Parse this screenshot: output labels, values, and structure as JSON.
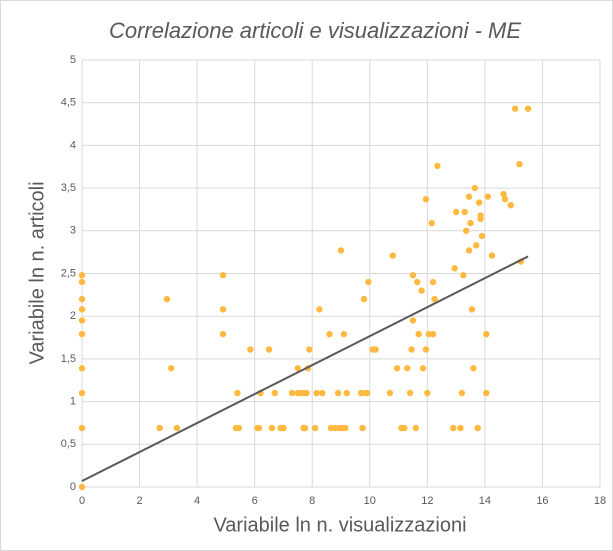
{
  "chart_data": {
    "type": "scatter",
    "title": "Correlazione articoli e visualizzazioni - ME",
    "x_label": "Variabile ln n. visualizzazioni",
    "y_label": "Variabile ln n. articoli",
    "xlim": [
      0,
      18
    ],
    "xticks": [
      0,
      2,
      4,
      6,
      8,
      10,
      12,
      14,
      16,
      18
    ],
    "ylim": [
      0,
      5
    ],
    "yticks": [
      0,
      {
        "value": 0.5,
        "label": "0,5"
      },
      1,
      {
        "value": 1.5,
        "label": "1,5"
      },
      2,
      {
        "value": 2.5,
        "label": "2,5"
      },
      3,
      {
        "value": 3.5,
        "label": "3,5"
      },
      4,
      {
        "value": 4.5,
        "label": "4,5"
      },
      5
    ],
    "grid": true,
    "color": "#ffb940",
    "x": [
      0,
      0,
      0,
      0,
      0,
      0,
      0,
      0,
      0,
      0,
      2.7,
      2.95,
      3.1,
      3.3,
      4.9,
      4.9,
      4.9,
      5.35,
      5.45,
      5.4,
      5.85,
      6.1,
      6.2,
      6.15,
      6.5,
      6.6,
      6.7,
      6.9,
      7.0,
      7.3,
      7.5,
      7.5,
      7.6,
      7.7,
      7.7,
      7.8,
      7.85,
      7.9,
      7.75,
      8.1,
      8.15,
      8.25,
      8.35,
      8.6,
      8.65,
      8.8,
      8.9,
      8.95,
      9.0,
      9.05,
      9.1,
      9.15,
      9.2,
      9.7,
      9.75,
      9.8,
      9.85,
      9.95,
      9.9,
      10.1,
      10.2,
      10.7,
      10.8,
      10.95,
      11.1,
      11.2,
      11.3,
      11.4,
      11.45,
      11.5,
      11.5,
      11.6,
      11.65,
      11.7,
      11.8,
      11.85,
      11.95,
      12.0,
      11.95,
      12.05,
      12.15,
      12.2,
      12.2,
      12.25,
      12.35,
      12.9,
      12.95,
      13.0,
      13.15,
      13.2,
      13.25,
      13.3,
      13.35,
      13.45,
      13.5,
      13.45,
      13.55,
      13.6,
      13.65,
      13.7,
      13.75,
      13.8,
      13.85,
      13.85,
      13.9,
      14.05,
      14.05,
      14.1,
      14.25,
      14.65,
      14.7,
      14.9,
      15.05,
      15.2,
      15.25,
      15.5
    ],
    "values": [
      0,
      0.69,
      1.1,
      1.39,
      1.79,
      1.95,
      2.08,
      2.2,
      2.4,
      2.48,
      0.69,
      2.2,
      1.39,
      0.69,
      1.79,
      2.08,
      2.48,
      0.69,
      0.69,
      1.1,
      1.61,
      0.69,
      1.1,
      0.69,
      1.61,
      0.69,
      1.1,
      0.69,
      0.69,
      1.1,
      1.1,
      1.39,
      1.1,
      1.1,
      0.69,
      1.1,
      1.39,
      1.61,
      0.69,
      0.69,
      1.1,
      2.08,
      1.1,
      1.79,
      0.69,
      0.69,
      1.1,
      0.69,
      2.77,
      0.69,
      1.79,
      0.69,
      1.1,
      1.1,
      0.69,
      2.2,
      1.1,
      2.4,
      1.1,
      1.61,
      1.61,
      1.1,
      2.71,
      1.39,
      0.69,
      0.69,
      1.39,
      1.1,
      1.61,
      2.48,
      1.95,
      0.69,
      2.4,
      1.79,
      2.3,
      1.39,
      1.61,
      1.1,
      3.37,
      1.79,
      3.09,
      1.79,
      2.4,
      2.2,
      3.76,
      0.69,
      2.56,
      3.22,
      0.69,
      1.1,
      2.48,
      3.22,
      3.0,
      2.77,
      3.09,
      3.4,
      2.08,
      1.39,
      3.5,
      2.83,
      0.69,
      3.33,
      3.18,
      3.14,
      2.94,
      1.79,
      1.1,
      3.4,
      2.71,
      3.43,
      3.37,
      3.3,
      4.43,
      3.78,
      2.64,
      4.43
    ],
    "trend_line": {
      "x": [
        0,
        15.5
      ],
      "y": [
        0.07,
        2.7
      ],
      "color": "#595959"
    }
  }
}
